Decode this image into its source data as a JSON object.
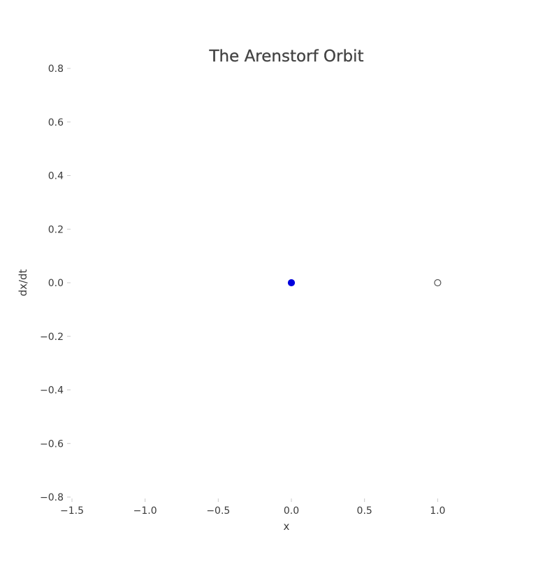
{
  "chart_data": {
    "type": "scatter",
    "title": "The Arenstorf Orbit",
    "xlabel": "x",
    "ylabel": "dx/dt",
    "xlim": [
      -1.5,
      1.5
    ],
    "ylim": [
      -0.8,
      0.8
    ],
    "grid": false,
    "x_ticks": [
      -1.5,
      -1.0,
      -0.5,
      0.0,
      0.5,
      1.0
    ],
    "x_tick_labels": [
      "−1.5",
      "−1.0",
      "−0.5",
      "0.0",
      "0.5",
      "1.0"
    ],
    "y_ticks": [
      0.8,
      0.6,
      0.4,
      0.2,
      0.0,
      -0.2,
      -0.4,
      -0.6,
      -0.8
    ],
    "y_tick_labels": [
      "0.8",
      "0.6",
      "0.4",
      "0.2",
      "0.0",
      "−0.2",
      "−0.4",
      "−0.6",
      "−0.8"
    ],
    "points": [
      {
        "x": 0.0,
        "y": 0.0,
        "fill": "#0000dd",
        "stroke": "#0000dd"
      },
      {
        "x": 1.0,
        "y": 0.0,
        "fill": "#ffffff",
        "stroke": "#555555"
      }
    ]
  }
}
